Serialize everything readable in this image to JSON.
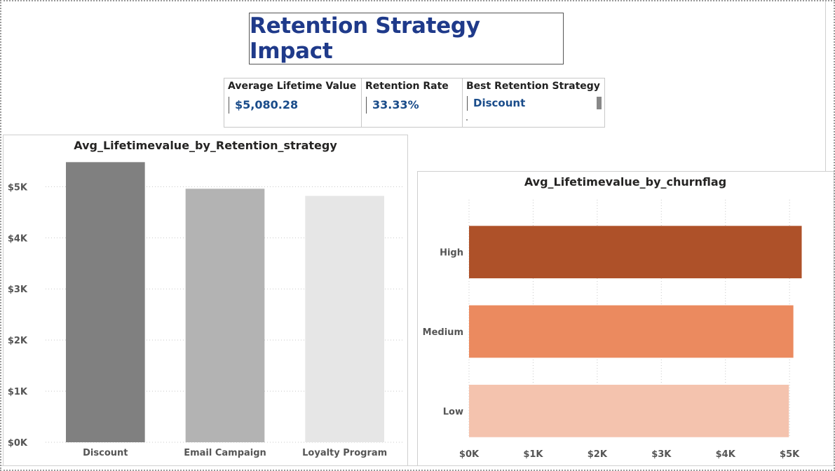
{
  "header": {
    "title": "Retention Strategy Impact"
  },
  "kpis": [
    {
      "label": "Average Lifetime Value",
      "value": "$5,080.28"
    },
    {
      "label": "Retention Rate",
      "value": "33.33%"
    },
    {
      "label": "Best Retention Strategy",
      "value": "Discount"
    }
  ],
  "colors": {
    "title": "#1f3a8a",
    "kpi_value": "#1a4c8a",
    "strategy_bars": [
      "#808080",
      "#b3b3b3",
      "#e6e6e6"
    ],
    "churn_bars": [
      "#ae5129",
      "#eb8a5f",
      "#f4c3ae"
    ]
  },
  "chart_data": [
    {
      "type": "bar",
      "orientation": "vertical",
      "title": "Avg_Lifetimevalue_by_Retention_strategy",
      "categories": [
        "Discount",
        "Email Campaign",
        "Loyalty Program"
      ],
      "values": [
        5480,
        4960,
        4820
      ],
      "ylim": [
        0,
        5800
      ],
      "yticks": [
        0,
        1000,
        2000,
        3000,
        4000,
        5000
      ],
      "ytick_labels": [
        "$0K",
        "$1K",
        "$2K",
        "$3K",
        "$4K",
        "$5K"
      ],
      "grid": true
    },
    {
      "type": "bar",
      "orientation": "horizontal",
      "title": "Avg_Lifetimevalue_by_churnflag",
      "categories": [
        "High",
        "Medium",
        "Low"
      ],
      "values": [
        5190,
        5060,
        4990
      ],
      "xlim": [
        0,
        5250
      ],
      "xticks": [
        0,
        1000,
        2000,
        3000,
        4000,
        5000
      ],
      "xtick_labels": [
        "$0K",
        "$1K",
        "$2K",
        "$3K",
        "$4K",
        "$5K"
      ],
      "grid": true
    }
  ]
}
